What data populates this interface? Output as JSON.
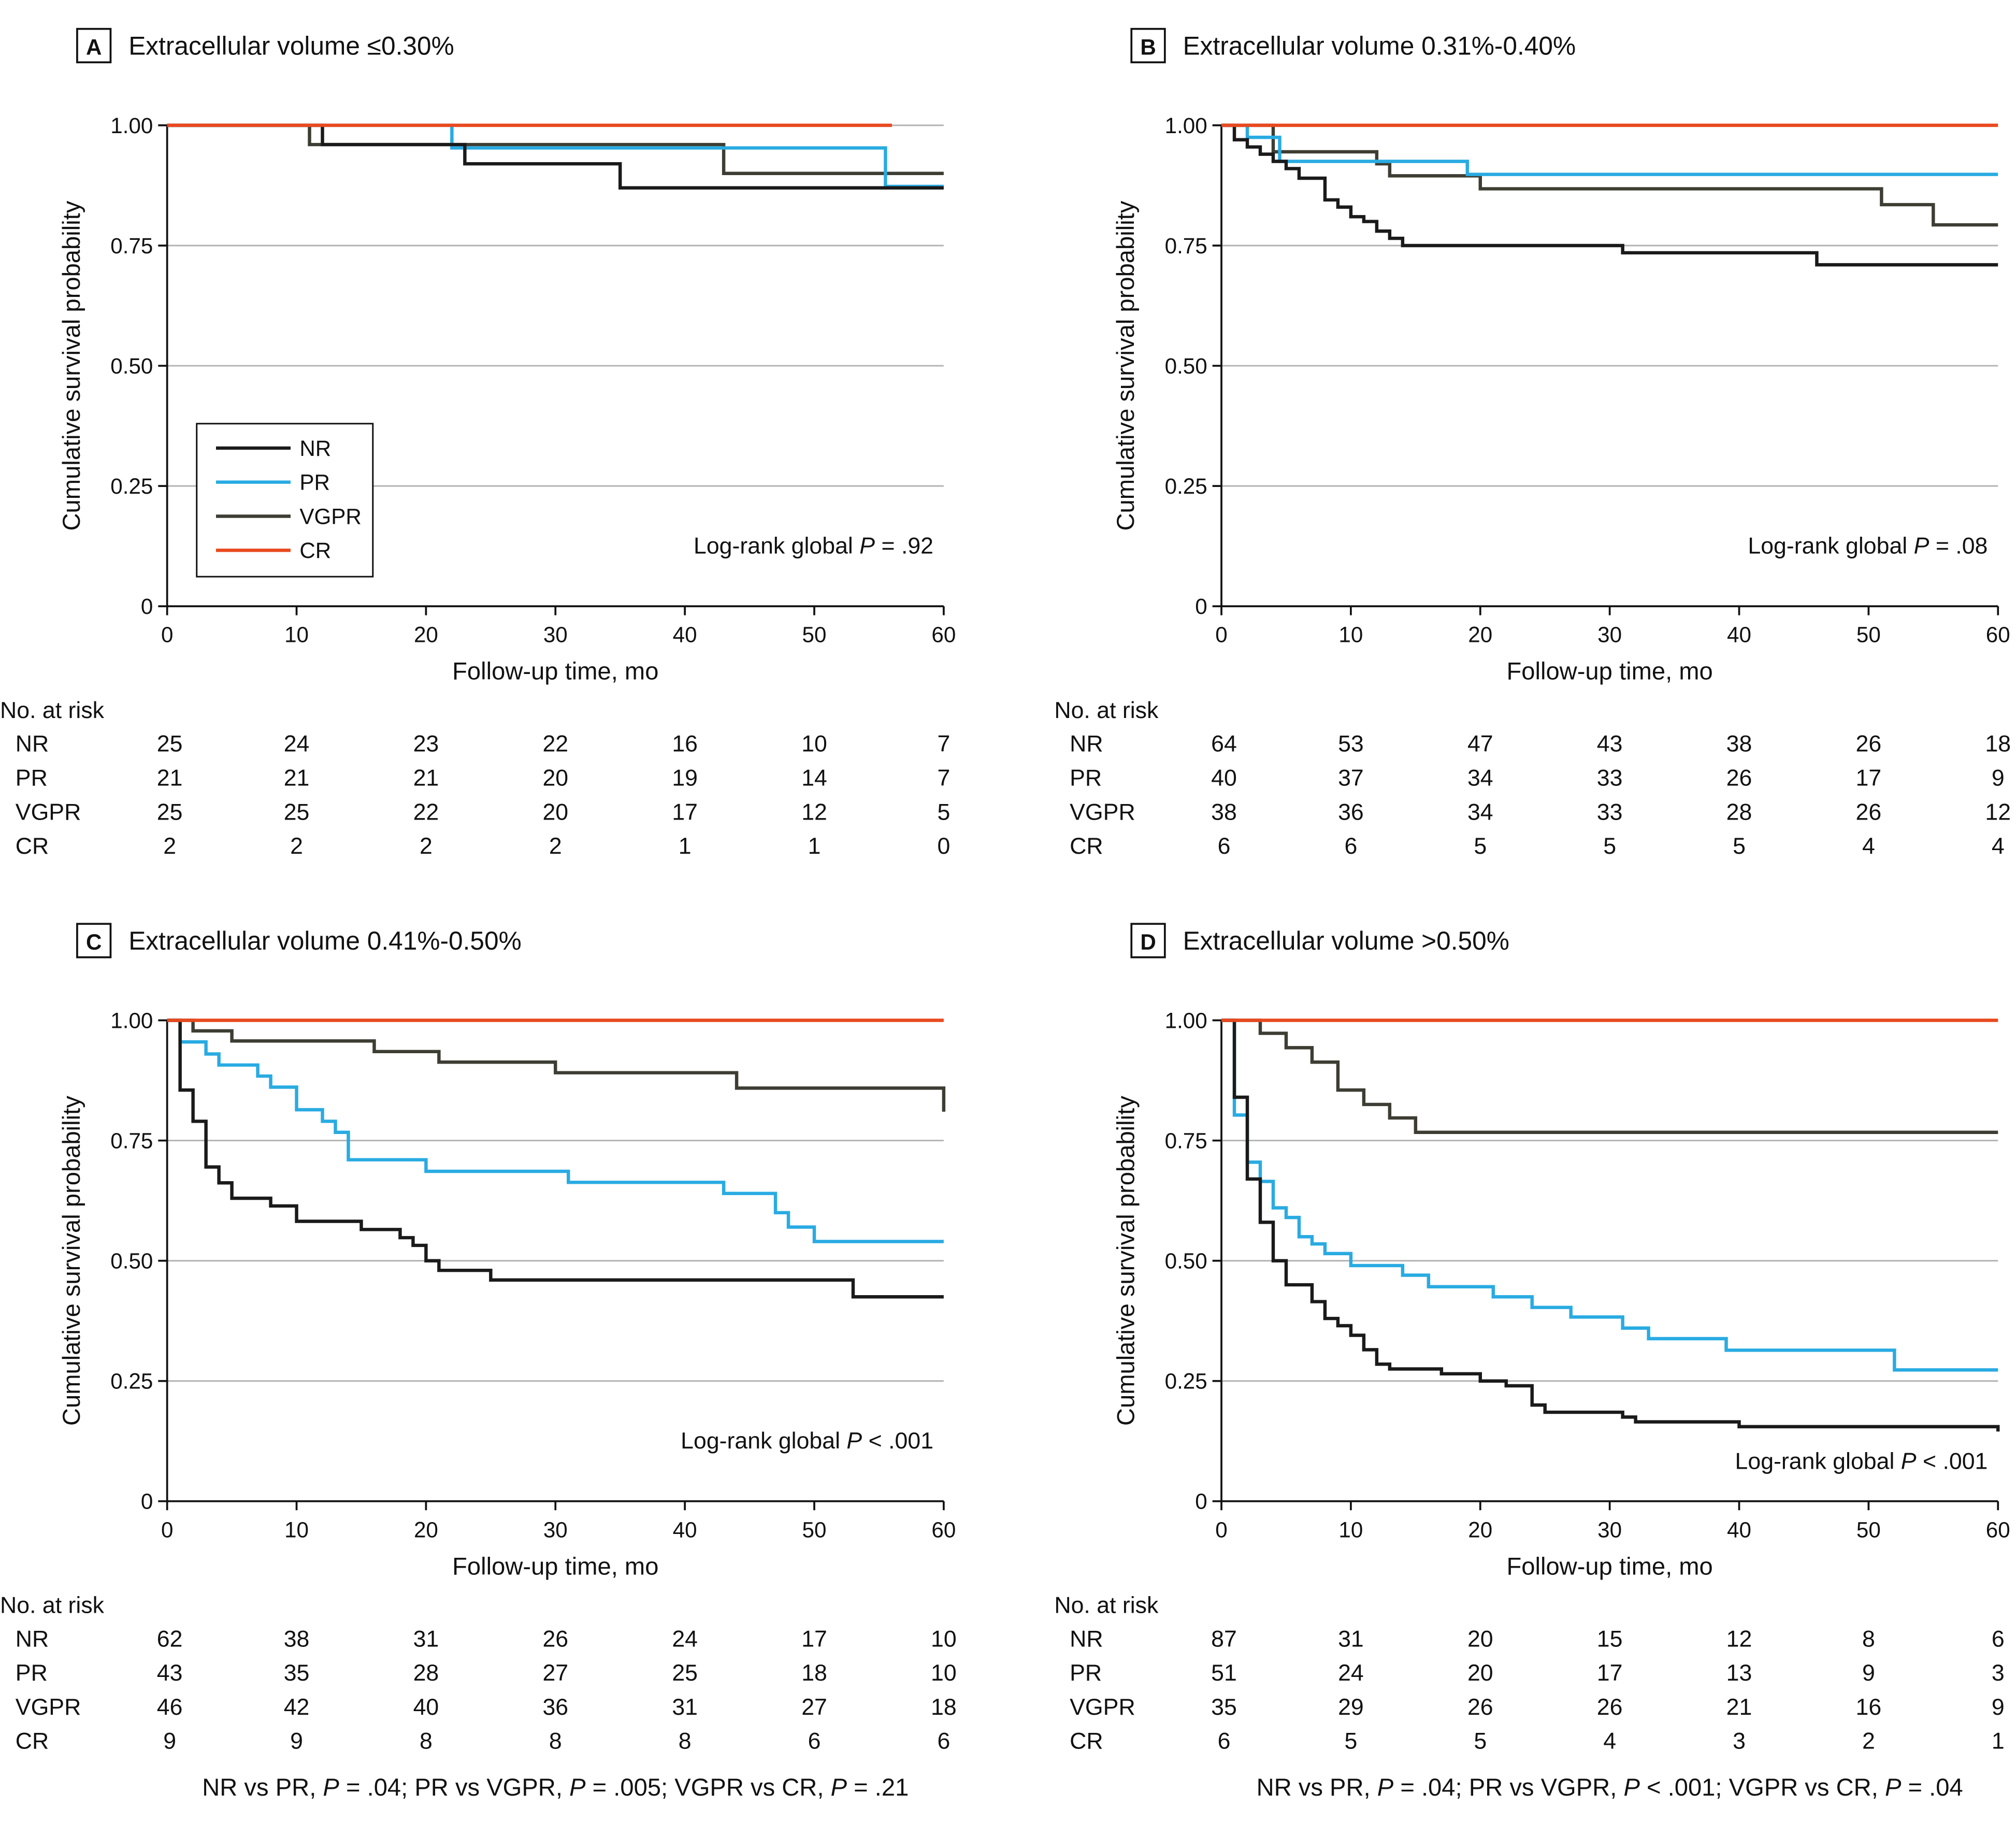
{
  "figure": {
    "colors": {
      "NR": "#1a1a1a",
      "PR": "#29abe2",
      "VGPR": "#3d3d33",
      "CR": "#e84a1f",
      "grid": "#b3b3b3"
    },
    "shared": {
      "y_ticks": [
        "0",
        "0.25",
        "0.50",
        "0.75",
        "1.00"
      ],
      "x_ticks": [
        "0",
        "10",
        "20",
        "30",
        "40",
        "50",
        "60"
      ],
      "ylabel": "Cumulative survival probability",
      "xlabel": "Follow-up time, mo",
      "risk_title": "No. at risk",
      "legend": [
        "NR",
        "PR",
        "VGPR",
        "CR"
      ]
    },
    "footnotes": [
      {
        "parts": [
          {
            "t": "NR vs PR, "
          },
          {
            "t": "P",
            "i": true
          },
          {
            "t": " = .04; PR vs VGPR, "
          },
          {
            "t": "P",
            "i": true
          },
          {
            "t": " = .005; VGPR vs CR, "
          },
          {
            "t": "P",
            "i": true
          },
          {
            "t": " = .21"
          }
        ]
      },
      {
        "parts": [
          {
            "t": "NR vs PR, "
          },
          {
            "t": "P",
            "i": true
          },
          {
            "t": " = .04; PR vs VGPR, "
          },
          {
            "t": "P",
            "i": true
          },
          {
            "t": " < .001; VGPR vs CR, "
          },
          {
            "t": "P",
            "i": true
          },
          {
            "t": " = .04"
          }
        ]
      }
    ]
  },
  "chart_data": [
    {
      "type": "line",
      "panel": "A",
      "title": "Extracellular volume ≤0.30%",
      "xlabel": "Follow-up time, mo",
      "ylabel": "Cumulative survival probability",
      "xlim": [
        0,
        60
      ],
      "ylim": [
        0,
        1
      ],
      "pvalue": {
        "prefix": "Log-rank global ",
        "p": "P",
        "rest": " = .92"
      },
      "legend": true,
      "series": [
        {
          "name": "NR",
          "steps": [
            [
              0,
              1
            ],
            [
              12,
              0.96
            ],
            [
              23,
              0.92
            ],
            [
              35,
              0.87
            ],
            [
              60,
              0.87
            ]
          ]
        },
        {
          "name": "PR",
          "steps": [
            [
              0,
              1
            ],
            [
              22,
              0.953
            ],
            [
              55.5,
              0.873
            ],
            [
              60,
              0.873
            ]
          ]
        },
        {
          "name": "VGPR",
          "steps": [
            [
              0,
              1
            ],
            [
              11,
              0.96
            ],
            [
              43,
              0.9
            ],
            [
              60,
              0.9
            ]
          ]
        },
        {
          "name": "CR",
          "steps": [
            [
              0,
              1
            ],
            [
              56,
              1
            ]
          ]
        }
      ],
      "at_risk": {
        "NR": [
          "25",
          "24",
          "23",
          "22",
          "16",
          "10",
          "7"
        ],
        "PR": [
          "21",
          "21",
          "21",
          "20",
          "19",
          "14",
          "7"
        ],
        "VGPR": [
          "25",
          "25",
          "22",
          "20",
          "17",
          "12",
          "5"
        ],
        "CR": [
          "2",
          "2",
          "2",
          "2",
          "1",
          "1",
          "0"
        ]
      }
    },
    {
      "type": "line",
      "panel": "B",
      "title": "Extracellular volume 0.31%-0.40%",
      "xlabel": "Follow-up time, mo",
      "ylabel": "Cumulative survival probability",
      "xlim": [
        0,
        60
      ],
      "ylim": [
        0,
        1
      ],
      "pvalue": {
        "prefix": "Log-rank global ",
        "p": "P",
        "rest": " = .08"
      },
      "legend": false,
      "series": [
        {
          "name": "NR",
          "steps": [
            [
              0,
              1
            ],
            [
              1,
              0.97
            ],
            [
              2,
              0.955
            ],
            [
              3,
              0.94
            ],
            [
              4,
              0.925
            ],
            [
              5,
              0.91
            ],
            [
              6,
              0.89
            ],
            [
              8,
              0.845
            ],
            [
              9,
              0.83
            ],
            [
              10,
              0.81
            ],
            [
              11,
              0.8
            ],
            [
              12,
              0.78
            ],
            [
              13,
              0.765
            ],
            [
              14,
              0.75
            ],
            [
              31,
              0.735
            ],
            [
              46,
              0.71
            ],
            [
              60,
              0.71
            ]
          ]
        },
        {
          "name": "PR",
          "steps": [
            [
              0,
              1
            ],
            [
              2,
              0.975
            ],
            [
              4.5,
              0.925
            ],
            [
              19,
              0.898
            ],
            [
              60,
              0.898
            ]
          ]
        },
        {
          "name": "VGPR",
          "steps": [
            [
              0,
              1
            ],
            [
              4,
              0.945
            ],
            [
              12,
              0.92
            ],
            [
              13,
              0.895
            ],
            [
              20,
              0.868
            ],
            [
              51,
              0.835
            ],
            [
              55,
              0.793
            ],
            [
              60,
              0.793
            ]
          ]
        },
        {
          "name": "CR",
          "steps": [
            [
              0,
              1
            ],
            [
              60,
              1
            ]
          ]
        }
      ],
      "at_risk": {
        "NR": [
          "64",
          "53",
          "47",
          "43",
          "38",
          "26",
          "18"
        ],
        "PR": [
          "40",
          "37",
          "34",
          "33",
          "26",
          "17",
          "9"
        ],
        "VGPR": [
          "38",
          "36",
          "34",
          "33",
          "28",
          "26",
          "12"
        ],
        "CR": [
          "6",
          "6",
          "5",
          "5",
          "5",
          "4",
          "4"
        ]
      }
    },
    {
      "type": "line",
      "panel": "C",
      "title": "Extracellular volume 0.41%-0.50%",
      "xlabel": "Follow-up time, mo",
      "ylabel": "Cumulative survival probability",
      "xlim": [
        0,
        60
      ],
      "ylim": [
        0,
        1
      ],
      "pvalue": {
        "prefix": "Log-rank global ",
        "p": "P",
        "rest": " < .001"
      },
      "legend": false,
      "series": [
        {
          "name": "NR",
          "steps": [
            [
              0,
              1
            ],
            [
              1,
              0.855
            ],
            [
              2,
              0.79
            ],
            [
              3,
              0.695
            ],
            [
              4,
              0.662
            ],
            [
              5,
              0.63
            ],
            [
              8,
              0.614
            ],
            [
              10,
              0.582
            ],
            [
              15,
              0.565
            ],
            [
              18,
              0.548
            ],
            [
              19,
              0.532
            ],
            [
              20,
              0.5
            ],
            [
              21,
              0.48
            ],
            [
              25,
              0.46
            ],
            [
              53,
              0.425
            ],
            [
              60,
              0.425
            ]
          ]
        },
        {
          "name": "PR",
          "steps": [
            [
              0,
              1
            ],
            [
              1,
              0.955
            ],
            [
              3,
              0.93
            ],
            [
              4,
              0.907
            ],
            [
              7,
              0.884
            ],
            [
              8,
              0.861
            ],
            [
              10,
              0.814
            ],
            [
              12,
              0.79
            ],
            [
              13,
              0.767
            ],
            [
              14,
              0.71
            ],
            [
              20,
              0.686
            ],
            [
              31,
              0.663
            ],
            [
              43,
              0.64
            ],
            [
              47,
              0.6
            ],
            [
              48,
              0.57
            ],
            [
              50,
              0.54
            ],
            [
              60,
              0.54
            ]
          ]
        },
        {
          "name": "VGPR",
          "steps": [
            [
              0,
              1
            ],
            [
              2,
              0.978
            ],
            [
              5,
              0.957
            ],
            [
              16,
              0.935
            ],
            [
              21,
              0.913
            ],
            [
              30,
              0.891
            ],
            [
              44,
              0.859
            ],
            [
              60,
              0.859
            ],
            [
              60,
              0.81
            ]
          ]
        },
        {
          "name": "CR",
          "steps": [
            [
              0,
              1
            ],
            [
              60,
              1
            ]
          ]
        }
      ],
      "at_risk": {
        "NR": [
          "62",
          "38",
          "31",
          "26",
          "24",
          "17",
          "10"
        ],
        "PR": [
          "43",
          "35",
          "28",
          "27",
          "25",
          "18",
          "10"
        ],
        "VGPR": [
          "46",
          "42",
          "40",
          "36",
          "31",
          "27",
          "18"
        ],
        "CR": [
          "9",
          "9",
          "8",
          "8",
          "8",
          "6",
          "6"
        ]
      }
    },
    {
      "type": "line",
      "panel": "D",
      "title": "Extracellular volume >0.50%",
      "xlabel": "Follow-up time, mo",
      "ylabel": "Cumulative survival probability",
      "xlim": [
        0,
        60
      ],
      "ylim": [
        0,
        1
      ],
      "pvalue": {
        "prefix": "Log-rank global ",
        "p": "P",
        "rest": " < .001"
      },
      "legend": false,
      "series": [
        {
          "name": "NR",
          "steps": [
            [
              0,
              1
            ],
            [
              1,
              0.84
            ],
            [
              2,
              0.67
            ],
            [
              3,
              0.58
            ],
            [
              4,
              0.5
            ],
            [
              5,
              0.45
            ],
            [
              7,
              0.415
            ],
            [
              8,
              0.38
            ],
            [
              9,
              0.365
            ],
            [
              10,
              0.345
            ],
            [
              11,
              0.315
            ],
            [
              12,
              0.285
            ],
            [
              13,
              0.275
            ],
            [
              17,
              0.265
            ],
            [
              20,
              0.25
            ],
            [
              22,
              0.24
            ],
            [
              24,
              0.2
            ],
            [
              25,
              0.185
            ],
            [
              31,
              0.175
            ],
            [
              32,
              0.165
            ],
            [
              40,
              0.155
            ],
            [
              60,
              0.145
            ]
          ]
        },
        {
          "name": "PR",
          "steps": [
            [
              0,
              1
            ],
            [
              1,
              0.803
            ],
            [
              2,
              0.705
            ],
            [
              3,
              0.665
            ],
            [
              4,
              0.61
            ],
            [
              5,
              0.59
            ],
            [
              6,
              0.55
            ],
            [
              7,
              0.535
            ],
            [
              8,
              0.515
            ],
            [
              10,
              0.49
            ],
            [
              14,
              0.47
            ],
            [
              16,
              0.446
            ],
            [
              21,
              0.425
            ],
            [
              24,
              0.403
            ],
            [
              27,
              0.383
            ],
            [
              31,
              0.36
            ],
            [
              33,
              0.338
            ],
            [
              39,
              0.314
            ],
            [
              52,
              0.273
            ],
            [
              60,
              0.273
            ]
          ]
        },
        {
          "name": "VGPR",
          "steps": [
            [
              0,
              1
            ],
            [
              3,
              0.973
            ],
            [
              5,
              0.943
            ],
            [
              7,
              0.913
            ],
            [
              9,
              0.855
            ],
            [
              11,
              0.825
            ],
            [
              13,
              0.797
            ],
            [
              15,
              0.767
            ],
            [
              60,
              0.767
            ]
          ]
        },
        {
          "name": "CR",
          "steps": [
            [
              0,
              1
            ],
            [
              60,
              1
            ]
          ]
        }
      ],
      "at_risk": {
        "NR": [
          "87",
          "31",
          "20",
          "15",
          "12",
          "8",
          "6"
        ],
        "PR": [
          "51",
          "24",
          "20",
          "17",
          "13",
          "9",
          "3"
        ],
        "VGPR": [
          "35",
          "29",
          "26",
          "26",
          "21",
          "16",
          "9"
        ],
        "CR": [
          "6",
          "5",
          "5",
          "4",
          "3",
          "2",
          "1"
        ]
      }
    }
  ]
}
